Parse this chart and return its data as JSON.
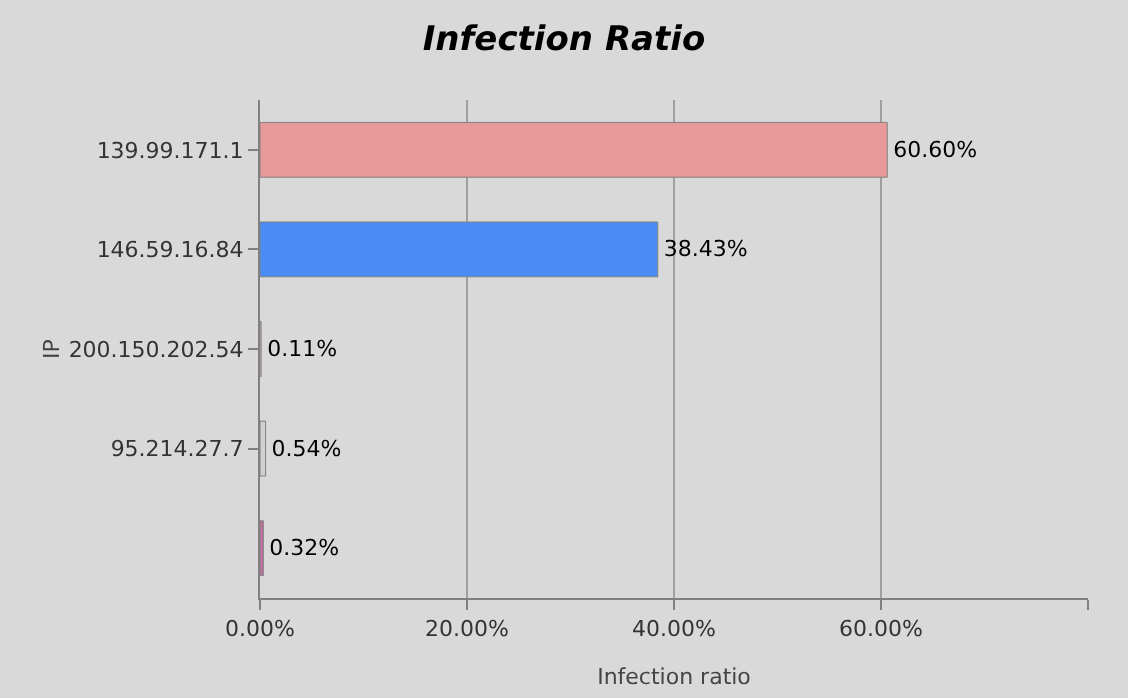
{
  "chart_data": {
    "type": "bar",
    "orientation": "horizontal",
    "title": "Infection Ratio",
    "xlabel": "Infection ratio",
    "ylabel": "IP",
    "categories": [
      "139.99.171.1",
      "146.59.16.84",
      "200.150.202.54",
      "95.214.27.7",
      null
    ],
    "values": [
      60.6,
      38.43,
      0.11,
      0.54,
      0.32
    ],
    "colors": [
      "#e89a9a",
      "#4a8cf5",
      "#f0c0d0",
      "#d0d0d0",
      "#c070a0"
    ],
    "value_labels": [
      "60.60%",
      "38.43%",
      "0.11%",
      "0.54%",
      "0.32%"
    ],
    "xlim": [
      0,
      80
    ],
    "xticks": [
      {
        "value": 0,
        "label": "0.00%"
      },
      {
        "value": 20,
        "label": "20.00%"
      },
      {
        "value": 40,
        "label": "40.00%"
      },
      {
        "value": 60,
        "label": "60.00%"
      },
      {
        "value": 80,
        "label": null
      }
    ],
    "grid": "x"
  }
}
